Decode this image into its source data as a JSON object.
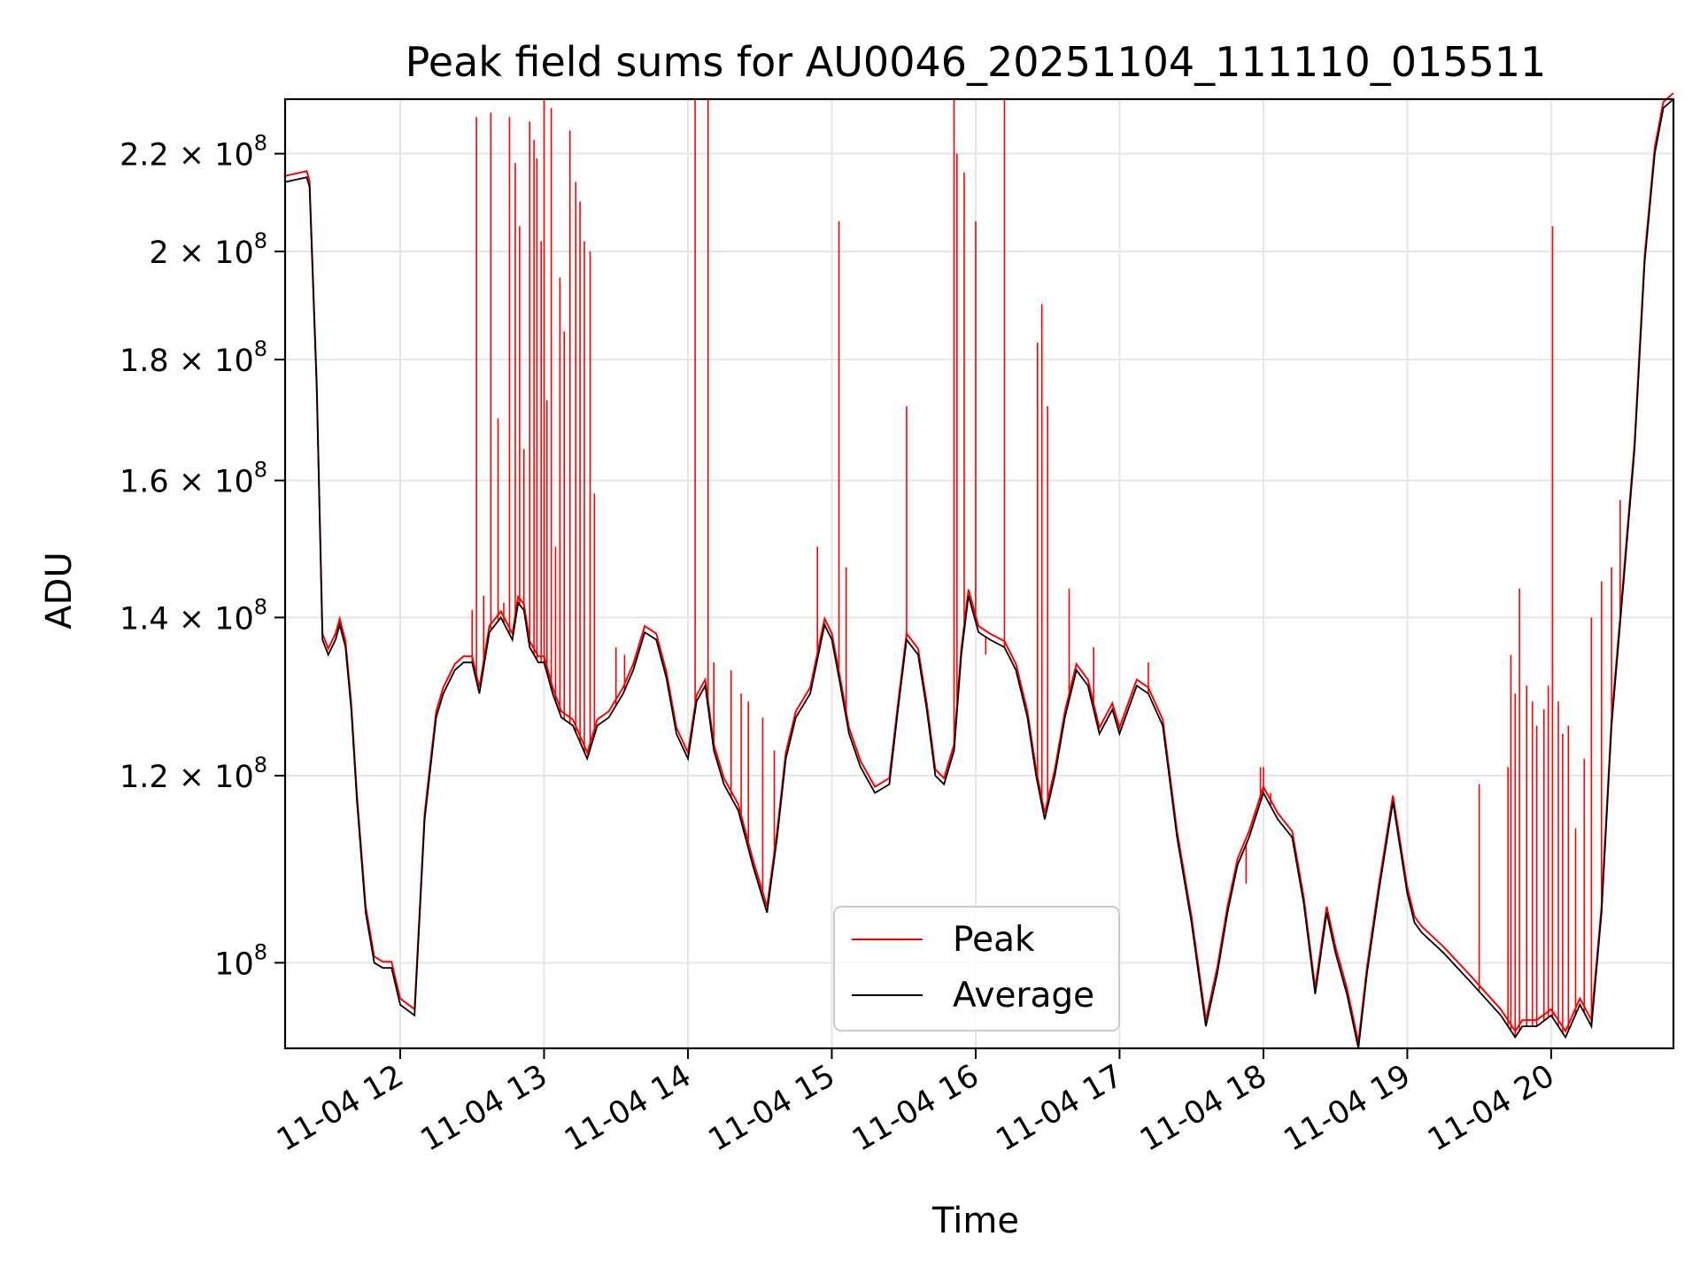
{
  "chart_data": {
    "type": "line",
    "title": "Peak field sums for AU0046_20251104_111110_015511",
    "xlabel": "Time",
    "ylabel": "ADU",
    "yscale": "log",
    "xlim": [
      11.2,
      20.85
    ],
    "ylim": [
      92000000,
      232000000
    ],
    "x_ticks": [
      {
        "value": 12,
        "label": "11-04 12"
      },
      {
        "value": 13,
        "label": "11-04 13"
      },
      {
        "value": 14,
        "label": "11-04 14"
      },
      {
        "value": 15,
        "label": "11-04 15"
      },
      {
        "value": 16,
        "label": "11-04 16"
      },
      {
        "value": 17,
        "label": "11-04 17"
      },
      {
        "value": 18,
        "label": "11-04 18"
      },
      {
        "value": 19,
        "label": "11-04 19"
      },
      {
        "value": 20,
        "label": "11-04 20"
      }
    ],
    "y_ticks": [
      {
        "value": 100000000,
        "mantissa": "",
        "exponent": "8"
      },
      {
        "value": 120000000,
        "mantissa": "1.2",
        "exponent": "8"
      },
      {
        "value": 140000000,
        "mantissa": "1.4",
        "exponent": "8"
      },
      {
        "value": 160000000,
        "mantissa": "1.6",
        "exponent": "8"
      },
      {
        "value": 180000000,
        "mantissa": "1.8",
        "exponent": "8"
      },
      {
        "value": 200000000,
        "mantissa": "2",
        "exponent": "8"
      },
      {
        "value": 220000000,
        "mantissa": "2.2",
        "exponent": "8"
      }
    ],
    "legend": {
      "placement": "lower-center"
    },
    "colors": {
      "peak": "#ff0000",
      "average": "#000000",
      "grid": "#e6e6e6"
    },
    "series": [
      {
        "name": "Average",
        "color": "#000000",
        "x": [
          11.2,
          11.35,
          11.37,
          11.42,
          11.46,
          11.5,
          11.55,
          11.58,
          11.62,
          11.66,
          11.7,
          11.76,
          11.82,
          11.88,
          11.94,
          12.0,
          12.1,
          12.17,
          12.25,
          12.3,
          12.38,
          12.44,
          12.5,
          12.55,
          12.62,
          12.7,
          12.78,
          12.82,
          12.86,
          12.9,
          12.96,
          13.0,
          13.06,
          13.12,
          13.2,
          13.25,
          13.3,
          13.37,
          13.45,
          13.55,
          13.62,
          13.7,
          13.78,
          13.85,
          13.92,
          14.0,
          14.06,
          14.12,
          14.18,
          14.25,
          14.35,
          14.45,
          14.55,
          14.62,
          14.68,
          14.75,
          14.85,
          14.95,
          15.0,
          15.06,
          15.12,
          15.2,
          15.3,
          15.4,
          15.46,
          15.52,
          15.6,
          15.66,
          15.72,
          15.78,
          15.85,
          15.9,
          15.95,
          16.02,
          16.1,
          16.2,
          16.28,
          16.36,
          16.42,
          16.48,
          16.55,
          16.62,
          16.7,
          16.78,
          16.86,
          16.95,
          17.0,
          17.06,
          17.12,
          17.2,
          17.3,
          17.4,
          17.5,
          17.6,
          17.68,
          17.75,
          17.82,
          17.9,
          18.0,
          18.1,
          18.2,
          18.28,
          18.36,
          18.44,
          18.5,
          18.58,
          18.66,
          18.72,
          18.8,
          18.9,
          19.0,
          19.05,
          19.1,
          19.25,
          19.45,
          19.65,
          19.75,
          19.8,
          19.9,
          20.0,
          20.1,
          20.2,
          20.28,
          20.35,
          20.42,
          20.5,
          20.58,
          20.65,
          20.72,
          20.78,
          20.85
        ],
        "values": [
          214000000,
          215000000,
          213000000,
          175000000,
          137000000,
          135000000,
          137000000,
          139000000,
          136000000,
          128000000,
          117000000,
          105000000,
          100000000,
          99500000,
          99500000,
          96000000,
          95000000,
          115000000,
          127000000,
          130000000,
          133000000,
          134000000,
          134000000,
          130000000,
          138000000,
          140000000,
          137000000,
          142000000,
          141000000,
          136000000,
          134000000,
          134000000,
          130000000,
          127000000,
          126000000,
          124000000,
          122000000,
          126000000,
          127000000,
          130000000,
          133000000,
          138000000,
          137000000,
          132000000,
          125000000,
          122000000,
          129000000,
          131000000,
          123000000,
          119000000,
          116000000,
          110000000,
          105000000,
          113000000,
          122000000,
          127000000,
          130000000,
          139000000,
          137000000,
          131000000,
          125000000,
          121000000,
          118000000,
          119000000,
          128000000,
          137000000,
          135000000,
          128000000,
          120000000,
          119000000,
          123000000,
          135000000,
          143000000,
          138000000,
          137000000,
          136000000,
          133000000,
          127000000,
          120000000,
          115000000,
          120000000,
          127000000,
          133000000,
          131000000,
          125000000,
          128000000,
          125000000,
          128000000,
          131000000,
          130000000,
          126000000,
          113000000,
          104000000,
          94000000,
          99000000,
          105000000,
          110000000,
          113000000,
          118000000,
          115000000,
          113000000,
          106000000,
          97000000,
          105000000,
          101000000,
          97000000,
          92000000,
          99000000,
          107000000,
          117000000,
          107000000,
          104000000,
          103000000,
          101000000,
          98000000,
          95000000,
          93000000,
          94000000,
          94000000,
          95000000,
          93000000,
          96000000,
          94000000,
          105000000,
          126000000,
          144000000,
          165000000,
          198000000,
          220000000,
          230000000,
          232000000
        ]
      },
      {
        "name": "Peak",
        "color": "#ff0000",
        "x": [
          12.5,
          12.53,
          12.58,
          12.63,
          12.68,
          12.72,
          12.76,
          12.8,
          12.83,
          12.86,
          12.9,
          12.93,
          12.95,
          12.98,
          13.0,
          13.02,
          13.05,
          13.08,
          13.11,
          13.14,
          13.18,
          13.22,
          13.25,
          13.28,
          13.32,
          13.35,
          13.5,
          13.56,
          14.05,
          14.14,
          14.18,
          14.3,
          14.37,
          14.42,
          14.52,
          14.6,
          14.9,
          15.05,
          15.1,
          15.52,
          15.85,
          15.87,
          15.92,
          16.0,
          16.07,
          16.2,
          16.43,
          16.46,
          16.5,
          16.65,
          16.82,
          17.2,
          17.8,
          17.88,
          17.98,
          18.0,
          18.05,
          19.5,
          19.7,
          19.72,
          19.75,
          19.78,
          19.83,
          19.87,
          19.9,
          19.95,
          19.98,
          20.01,
          20.05,
          20.08,
          20.12,
          20.17,
          20.23,
          20.28,
          20.35,
          20.42,
          20.48
        ],
        "values": [
          141000000,
          228000000,
          143000000,
          229000000,
          170000000,
          142000000,
          228000000,
          218000000,
          205000000,
          165000000,
          227000000,
          223000000,
          219000000,
          202000000,
          235000000,
          173000000,
          230000000,
          150000000,
          195000000,
          185000000,
          225000000,
          214000000,
          210000000,
          202000000,
          200000000,
          158000000,
          136000000,
          135000000,
          235000000,
          235000000,
          134000000,
          133000000,
          130000000,
          129000000,
          127000000,
          123000000,
          150000000,
          206000000,
          147000000,
          172000000,
          235000000,
          220000000,
          216000000,
          206000000,
          135000000,
          235000000,
          183000000,
          190000000,
          172000000,
          144000000,
          136000000,
          134000000,
          109000000,
          108000000,
          121000000,
          121000000,
          118000000,
          119000000,
          121000000,
          135000000,
          130000000,
          144000000,
          131000000,
          129000000,
          126000000,
          128000000,
          131000000,
          205000000,
          129000000,
          125000000,
          126000000,
          114000000,
          122000000,
          140000000,
          145000000,
          147000000,
          157000000
        ]
      }
    ]
  }
}
